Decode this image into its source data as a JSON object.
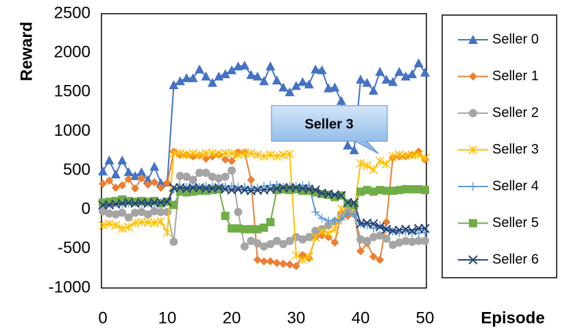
{
  "chart_data": {
    "type": "line",
    "x_label": "Episode",
    "y_label": "Reward",
    "annotation": "Seller 3",
    "x": [
      0,
      1,
      2,
      3,
      4,
      5,
      6,
      7,
      8,
      9,
      10,
      11,
      12,
      13,
      14,
      15,
      16,
      17,
      18,
      19,
      20,
      21,
      22,
      23,
      24,
      25,
      26,
      27,
      28,
      29,
      30,
      31,
      32,
      33,
      34,
      35,
      36,
      37,
      38,
      39,
      40,
      41,
      42,
      43,
      44,
      45,
      46,
      47,
      48,
      49,
      50
    ],
    "xlim": [
      0,
      50
    ],
    "xticks": [
      0,
      10,
      20,
      30,
      40,
      50
    ],
    "ylim": [
      -1000,
      2500
    ],
    "yticks": [
      -1000,
      -500,
      0,
      500,
      1000,
      1500,
      2000,
      2500
    ],
    "grid": false,
    "legend": "right",
    "series": [
      {
        "name": "Seller 0",
        "color": "#4472c4",
        "marker": "triangle",
        "values": [
          490,
          630,
          450,
          630,
          480,
          430,
          480,
          380,
          550,
          340,
          350,
          1590,
          1640,
          1680,
          1680,
          1790,
          1700,
          1620,
          1700,
          1730,
          1780,
          1830,
          1840,
          1720,
          1700,
          1640,
          1830,
          1650,
          1560,
          1500,
          1580,
          1630,
          1600,
          1790,
          1780,
          1550,
          1560,
          1390,
          820,
          760,
          1660,
          1620,
          1520,
          1760,
          1660,
          1630,
          1760,
          1700,
          1730,
          1870,
          1750
        ]
      },
      {
        "name": "Seller 1",
        "color": "#ed7d31",
        "marker": "diamond",
        "values": [
          330,
          370,
          280,
          310,
          390,
          270,
          400,
          320,
          350,
          280,
          340,
          740,
          700,
          700,
          680,
          690,
          650,
          680,
          700,
          640,
          620,
          730,
          730,
          380,
          -640,
          -660,
          -660,
          -680,
          -690,
          -700,
          -720,
          -580,
          -620,
          -350,
          -330,
          -350,
          -420,
          -50,
          -80,
          -40,
          -530,
          -430,
          -600,
          -640,
          -160,
          660,
          680,
          680,
          700,
          740,
          640
        ]
      },
      {
        "name": "Seller 2",
        "color": "#a5a5a5",
        "marker": "circle",
        "values": [
          -20,
          -50,
          -60,
          -40,
          -100,
          -40,
          -30,
          -60,
          -20,
          -30,
          -30,
          -410,
          430,
          420,
          380,
          470,
          470,
          420,
          400,
          420,
          500,
          -30,
          -470,
          -400,
          -430,
          -470,
          -440,
          -400,
          -440,
          -400,
          -350,
          -380,
          -350,
          -270,
          -250,
          -200,
          -150,
          -80,
          -20,
          -50,
          -380,
          -400,
          -350,
          -330,
          -370,
          -450,
          -420,
          -400,
          -410,
          -400,
          -400
        ]
      },
      {
        "name": "Seller 3",
        "color": "#ffc000",
        "marker": "star",
        "values": [
          -200,
          -180,
          -200,
          -240,
          -220,
          -170,
          -160,
          -160,
          -170,
          -150,
          -290,
          720,
          720,
          700,
          720,
          700,
          720,
          720,
          710,
          720,
          720,
          700,
          720,
          720,
          700,
          680,
          700,
          680,
          700,
          710,
          -580,
          -640,
          -600,
          -350,
          -280,
          -300,
          -250,
          10,
          50,
          0,
          590,
          560,
          510,
          620,
          580,
          680,
          700,
          690,
          700,
          700,
          660
        ]
      },
      {
        "name": "Seller 4",
        "color": "#5b9bd5",
        "marker": "plus",
        "values": [
          70,
          70,
          80,
          70,
          80,
          90,
          80,
          90,
          70,
          90,
          100,
          250,
          280,
          290,
          300,
          290,
          300,
          300,
          310,
          300,
          300,
          290,
          290,
          270,
          280,
          300,
          310,
          320,
          290,
          300,
          300,
          310,
          310,
          -30,
          -110,
          -140,
          -140,
          -130,
          -50,
          -60,
          -180,
          -200,
          -240,
          -200,
          -250,
          -280,
          -300,
          -280,
          -300,
          -300,
          -290
        ]
      },
      {
        "name": "Seller 5",
        "color": "#70ad47",
        "marker": "square",
        "values": [
          90,
          100,
          110,
          130,
          110,
          100,
          110,
          100,
          110,
          80,
          100,
          60,
          230,
          220,
          230,
          240,
          240,
          250,
          260,
          -80,
          -240,
          -240,
          -250,
          -250,
          -250,
          -230,
          -160,
          250,
          260,
          250,
          260,
          240,
          240,
          220,
          200,
          190,
          160,
          180,
          80,
          60,
          230,
          250,
          230,
          250,
          240,
          240,
          250,
          260,
          260,
          260,
          250
        ]
      },
      {
        "name": "Seller 6",
        "color": "#264478",
        "marker": "x",
        "values": [
          60,
          60,
          70,
          80,
          90,
          80,
          90,
          80,
          90,
          90,
          100,
          280,
          280,
          270,
          280,
          280,
          270,
          270,
          280,
          260,
          250,
          260,
          250,
          240,
          250,
          250,
          260,
          270,
          280,
          280,
          280,
          270,
          260,
          250,
          210,
          200,
          190,
          180,
          90,
          90,
          -180,
          -170,
          -180,
          -220,
          -250,
          -270,
          -260,
          -250,
          -270,
          -240,
          -240
        ]
      }
    ]
  }
}
